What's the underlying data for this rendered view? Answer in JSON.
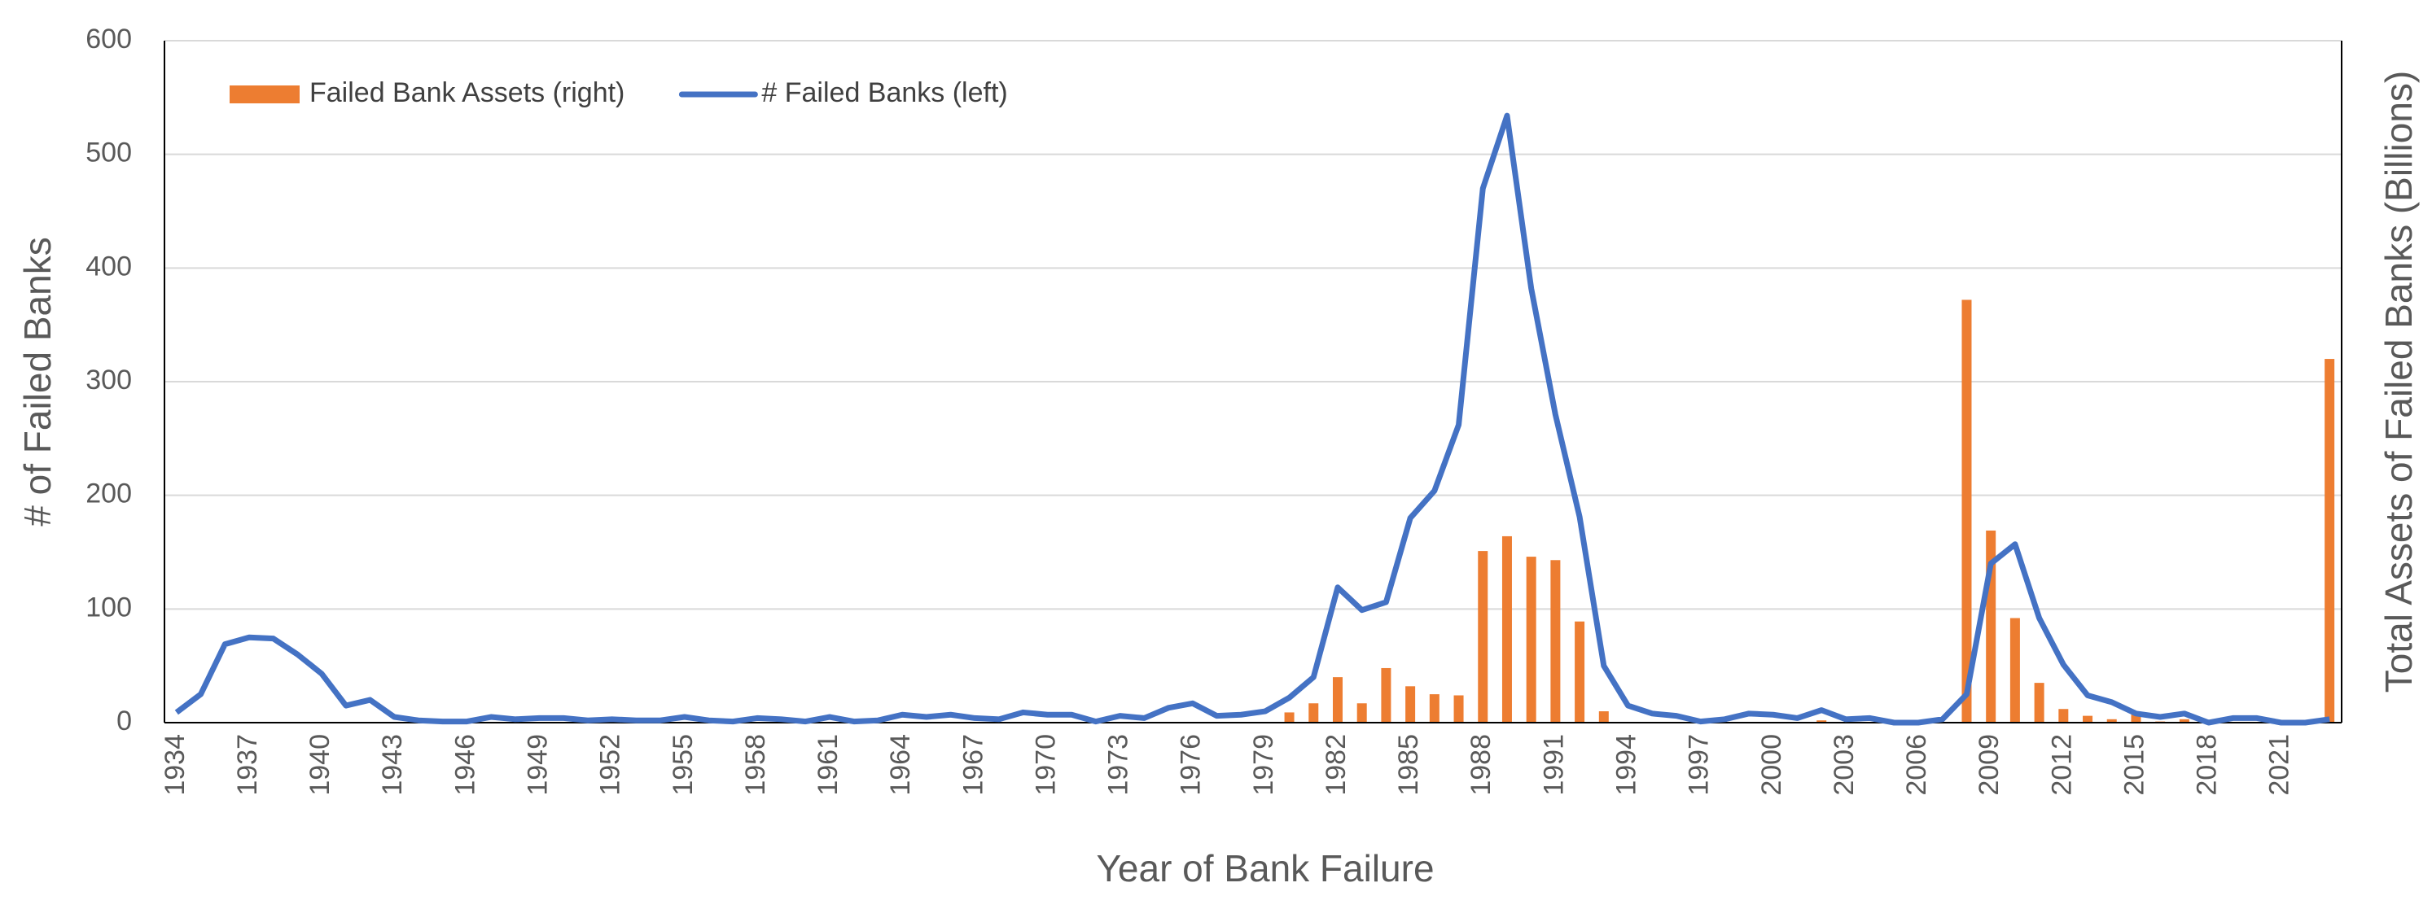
{
  "chart_data": {
    "type": "combo",
    "x_label": "Year of Bank Failure",
    "y_label": "# of Failed Banks",
    "y2_label": "Total Assets of Failed Banks (Billions)",
    "categories": [
      "1934",
      null,
      null,
      "1937",
      null,
      null,
      "1940",
      null,
      null,
      "1943",
      null,
      null,
      "1946",
      null,
      null,
      "1949",
      null,
      null,
      "1952",
      null,
      null,
      "1955",
      null,
      null,
      "1958",
      null,
      null,
      "1961",
      null,
      null,
      "1964",
      null,
      null,
      "1967",
      null,
      null,
      "1970",
      null,
      null,
      "1973",
      null,
      null,
      "1976",
      null,
      null,
      "1979",
      null,
      null,
      "1982",
      null,
      null,
      "1985",
      null,
      null,
      "1988",
      null,
      null,
      "1991",
      null,
      null,
      "1994",
      null,
      null,
      "1997",
      null,
      null,
      "2000",
      null,
      null,
      "2003",
      null,
      null,
      "2006",
      null,
      null,
      "2009",
      null,
      null,
      "2012",
      null,
      null,
      "2015",
      null,
      null,
      "2018",
      null,
      null,
      "2021",
      null,
      null
    ],
    "series": [
      {
        "name": "Failed Bank Assets (right)",
        "type": "bar",
        "axis": "y2",
        "color": "#ED7D31",
        "values": [
          0,
          0,
          0,
          0,
          0,
          0,
          0,
          0,
          0,
          0,
          0,
          0,
          0,
          0,
          0,
          0,
          0,
          0,
          0,
          0,
          0,
          0,
          0,
          0,
          0,
          0,
          0,
          0,
          0,
          0,
          0,
          0,
          0,
          0,
          0,
          0,
          0,
          0,
          0,
          0,
          0,
          0,
          0,
          0,
          0,
          0,
          9,
          17,
          40,
          17,
          48,
          32,
          25,
          24,
          151,
          164,
          146,
          143,
          89,
          10,
          0,
          0,
          0,
          0,
          0,
          0,
          0,
          0,
          2,
          0,
          0,
          0,
          0,
          0,
          372,
          169,
          92,
          35,
          12,
          6,
          3,
          7,
          1,
          3,
          0,
          0,
          0,
          0,
          0,
          320
        ]
      },
      {
        "name": "# Failed Banks (left)",
        "type": "line",
        "color": "#4472C4",
        "values": [
          9,
          25,
          69,
          75,
          74,
          60,
          43,
          15,
          20,
          5,
          2,
          1,
          1,
          5,
          3,
          4,
          4,
          2,
          3,
          2,
          2,
          5,
          2,
          1,
          4,
          3,
          1,
          5,
          1,
          2,
          7,
          5,
          7,
          4,
          3,
          9,
          7,
          7,
          1,
          6,
          4,
          13,
          17,
          6,
          7,
          10,
          22,
          40,
          119,
          99,
          106,
          180,
          204,
          262,
          470,
          534,
          382,
          271,
          181,
          50,
          15,
          8,
          6,
          1,
          3,
          8,
          7,
          4,
          11,
          3,
          4,
          0,
          0,
          3,
          25,
          140,
          157,
          92,
          51,
          24,
          18,
          8,
          5,
          8,
          0,
          4,
          4,
          0,
          0,
          3
        ]
      }
    ],
    "ylim": [
      0,
      600
    ],
    "yticks": [
      0,
      100,
      200,
      300,
      400,
      500,
      600
    ],
    "y2lim": [
      0,
      600
    ],
    "grid": true,
    "legend": "top-left"
  }
}
